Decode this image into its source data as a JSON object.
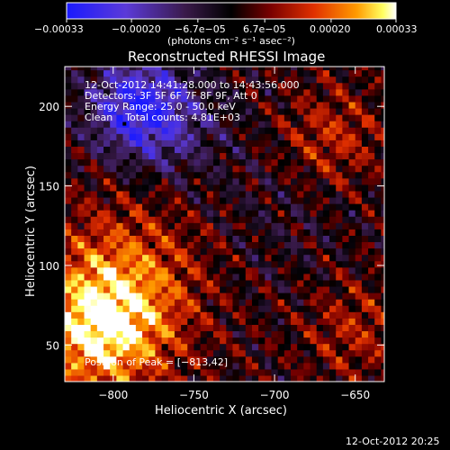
{
  "colorbar": {
    "ticks": [
      "−0.00033",
      "−0.00020",
      "−6.7e−05",
      "6.7e−05",
      "0.00020",
      "0.00033"
    ],
    "units": "(photons cm⁻² s⁻¹ asec⁻²)",
    "range": [
      -0.00033,
      0.00033
    ],
    "colors": [
      "#1a1aff",
      "#6b3ad1",
      "#3a1a4a",
      "#000000",
      "#7a0000",
      "#e03000",
      "#ff9a00",
      "#ffff60",
      "#ffffff"
    ]
  },
  "chart_data": {
    "type": "heatmap",
    "title": "Reconstructed RHESSI Image",
    "xlabel": "Heliocentric X (arcsec)",
    "ylabel": "Heliocentric Y (arcsec)",
    "xlim": [
      -830,
      -632
    ],
    "ylim": [
      27,
      225
    ],
    "x_ticks": [
      -800,
      -750,
      -700,
      -650
    ],
    "x_tick_labels": [
      "−800",
      "−750",
      "−700",
      "−650"
    ],
    "y_ticks": [
      50,
      100,
      150,
      200
    ],
    "y_tick_labels": [
      "50",
      "100",
      "150",
      "200"
    ],
    "annotations": [
      "12-Oct-2012 14:41:28.000 to 14:43:56.000",
      "Detectors: 3F 5F 6F 7F 8F 9F, Att 0",
      "Energy Range: 25.0 - 50.0 keV",
      "Clean    Total counts: 4.81E+03"
    ],
    "peak_label": "Position of Peak = [−813,42]",
    "peak_position": [
      -813,
      42
    ],
    "grid": false
  },
  "footer": {
    "timestamp": "12-Oct-2012 20:25"
  }
}
